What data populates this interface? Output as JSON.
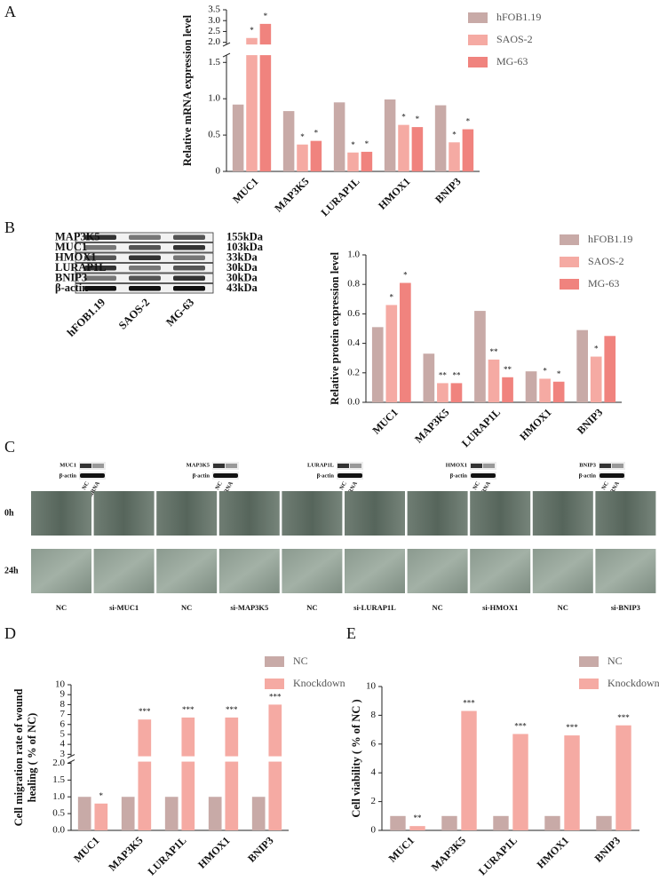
{
  "panels": [
    "A",
    "B",
    "C",
    "D",
    "E"
  ],
  "chart_data": [
    {
      "type": "bar",
      "ylabel": [
        "Relative mRNA expression level"
      ],
      "categories": [
        "MUC1",
        "MAP3K5",
        "LURAP1L",
        "HMOX1",
        "BNIP3"
      ],
      "series": [
        {
          "name": "hFOB1.19",
          "color": "#c8aaa7",
          "values": [
            0.92,
            0.83,
            0.95,
            0.99,
            0.91
          ]
        },
        {
          "name": "SAOS-2",
          "color": "#f5aaa3",
          "values": [
            2.2,
            0.37,
            0.26,
            0.64,
            0.4
          ],
          "significance": [
            "*",
            "*",
            "*",
            "*",
            "*"
          ]
        },
        {
          "name": "MG-63",
          "color": "#f0837e",
          "values": [
            2.85,
            0.42,
            0.27,
            0.61,
            0.58
          ],
          "significance": [
            "*",
            "*",
            "*",
            "*",
            "*"
          ]
        }
      ],
      "ylim": [
        0,
        3.5
      ],
      "ybreak": [
        1.6,
        1.9
      ],
      "yticks": [
        0,
        0.5,
        {
          "value": 1,
          "label": "1.0"
        },
        1.5,
        {
          "value": 2,
          "label": "2.0"
        },
        2.5,
        {
          "value": 3,
          "label": "3.0"
        },
        3.5
      ]
    },
    {
      "type": "bar",
      "ylabel": [
        "Relative protein expression level"
      ],
      "categories": [
        "MUC1",
        "MAP3K5",
        "LURAP1L",
        "HMOX1",
        "BNIP3"
      ],
      "series": [
        {
          "name": "hFOB1.19",
          "color": "#c8aaa7",
          "values": [
            0.51,
            0.33,
            0.62,
            0.21,
            0.49
          ]
        },
        {
          "name": "SAOS-2",
          "color": "#f5aaa3",
          "values": [
            0.66,
            0.13,
            0.29,
            0.16,
            0.31
          ],
          "significance": [
            "*",
            "**",
            "**",
            "*",
            "*"
          ]
        },
        {
          "name": "MG-63",
          "color": "#f0837e",
          "values": [
            0.81,
            0.13,
            0.17,
            0.14,
            0.45
          ],
          "significance": [
            "*",
            "**",
            "**",
            "*",
            null
          ]
        }
      ],
      "ylim": [
        0,
        1
      ],
      "yticks": [
        {
          "value": 0,
          "label": "0.0"
        },
        0.2,
        0.4,
        0.6,
        0.8,
        {
          "value": 1,
          "label": "1.0"
        }
      ]
    },
    {
      "type": "bar",
      "ylabel": [
        "Cell migration rate of wound",
        "healing ( % of NC)"
      ],
      "categories": [
        "MUC1",
        "MAP3K5",
        "LURAP1L",
        "HMOX1",
        "BNIP3"
      ],
      "series": [
        {
          "name": "NC",
          "color": "#c8aaa7",
          "values": [
            1.0,
            1.0,
            1.0,
            1.0,
            1.0
          ]
        },
        {
          "name": "Knockdown",
          "color": "#f5aaa3",
          "values": [
            0.8,
            6.5,
            6.7,
            6.7,
            8.0
          ],
          "significance": [
            "*",
            "***",
            "***",
            "***",
            "***"
          ]
        }
      ],
      "ylim": [
        0,
        10
      ],
      "ybreak": [
        2.05,
        2.8
      ],
      "yticks": [
        {
          "value": 0,
          "label": "0.0"
        },
        0.5,
        {
          "value": 1,
          "label": "1.0"
        },
        1.5,
        {
          "value": 2,
          "label": "2.0"
        },
        3,
        4,
        5,
        6,
        7,
        8,
        9,
        10
      ]
    },
    {
      "type": "bar",
      "ylabel": [
        "Cell viability ( % of NC )"
      ],
      "categories": [
        "MUC1",
        "MAP3K5",
        "LURAP1L",
        "HMOX1",
        "BNIP3"
      ],
      "series": [
        {
          "name": "NC",
          "color": "#c8aaa7",
          "values": [
            1.0,
            1.0,
            1.0,
            1.0,
            1.0
          ]
        },
        {
          "name": "Knockdown",
          "color": "#f5aaa3",
          "values": [
            0.3,
            8.3,
            6.7,
            6.6,
            7.3
          ],
          "significance": [
            "**",
            "***",
            "***",
            "***",
            "***"
          ]
        }
      ],
      "ylim": [
        0,
        10
      ],
      "yticks": [
        0,
        2,
        4,
        6,
        8,
        10
      ]
    }
  ],
  "western_blot": {
    "proteins": [
      "MAP3K5",
      "MUC1",
      "HMOX1",
      "LURAP1L",
      "BNIP3",
      "β-actin"
    ],
    "sizes": [
      "155kDa",
      "103kDa",
      "33kDa",
      "30kDa",
      "30kDa",
      "43kDa"
    ],
    "lanes": [
      "hFOB1.19",
      "SAOS-2",
      "MG-63"
    ]
  },
  "panel_c": {
    "blots": [
      {
        "target": "MUC1",
        "control": "β-actin",
        "lanes": [
          "NC",
          "siRNA"
        ]
      },
      {
        "target": "MAP3K5",
        "control": "β-actin",
        "lanes": [
          "NC",
          "siRNA"
        ]
      },
      {
        "target": "LURAP1L",
        "control": "β-actin",
        "lanes": [
          "NC",
          "siRNA"
        ]
      },
      {
        "target": "HMOX1",
        "control": "β-actin",
        "lanes": [
          "NC",
          "siRNA"
        ]
      },
      {
        "target": "BNIP3",
        "control": "β-actin",
        "lanes": [
          "NC",
          "siRNA"
        ]
      }
    ],
    "times": [
      "0h",
      "24h"
    ],
    "conditions": [
      "NC",
      "si-MUC1",
      "NC",
      "si-MAP3K5",
      "NC",
      "si-LURAP1L",
      "NC",
      "si-HMOX1",
      "NC",
      "si-BNIP3"
    ]
  }
}
